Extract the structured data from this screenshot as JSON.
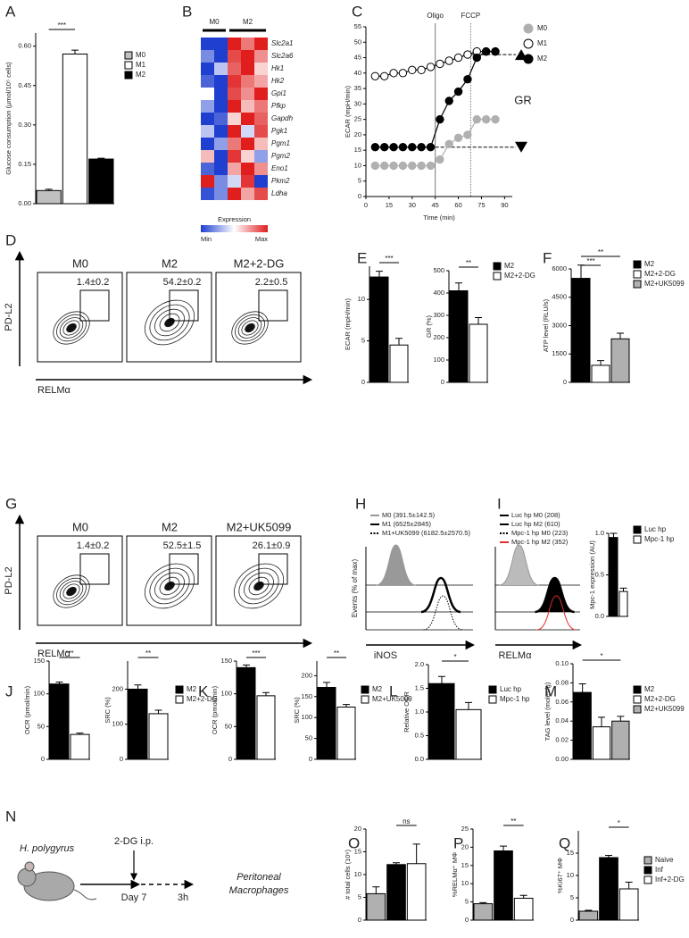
{
  "chart_data": [
    {
      "panel": "A",
      "type": "bar",
      "ylabel": "Glucose consumption (µmol/10⁵ cells)",
      "categories": [
        "M0",
        "M1",
        "M2"
      ],
      "colors": [
        "#c0c0c0",
        "#ffffff",
        "#000000"
      ],
      "values": [
        0.05,
        0.57,
        0.17
      ],
      "errors": [
        0.005,
        0.015,
        0.003
      ],
      "ylim": [
        0,
        0.65
      ],
      "yticks": [
        {
          "value": 0,
          "label": "0.00"
        },
        {
          "value": 0.15,
          "label": "0.15"
        },
        {
          "value": 0.3,
          "label": "0.30"
        },
        {
          "value": 0.45,
          "label": "0.45"
        },
        {
          "value": 0.6,
          "label": "0.60"
        }
      ],
      "annotations": [
        "***"
      ]
    },
    {
      "panel": "B",
      "type": "heatmap",
      "column_groups": [
        "M0",
        "M2"
      ],
      "rows": [
        "Slc2a1",
        "Slc2a6",
        "Hk1",
        "Hk2",
        "Gpi1",
        "Pfkp",
        "Gapdh",
        "Pgk1",
        "Pgm1",
        "Pgm2",
        "Eno1",
        "Pkm2",
        "Ldha"
      ],
      "matrix": [
        [
          -1,
          -1,
          1,
          0.6,
          1
        ],
        [
          -0.6,
          -1,
          0.8,
          1,
          0.5
        ],
        [
          -1,
          -0.3,
          0.7,
          1,
          0.2
        ],
        [
          -0.8,
          -1,
          0.9,
          0.6,
          0.4
        ],
        [
          0,
          -1,
          0.8,
          0.5,
          1
        ],
        [
          -0.5,
          -1,
          1,
          0.3,
          0.6
        ],
        [
          -1,
          -0.8,
          0.2,
          1,
          0.7
        ],
        [
          -0.3,
          -1,
          1,
          -0.2,
          0.8
        ],
        [
          -1,
          -0.5,
          0.6,
          1,
          0.3
        ],
        [
          0.3,
          -1,
          0.9,
          0.2,
          -0.5
        ],
        [
          -0.8,
          -1,
          0.4,
          1,
          0.5
        ],
        [
          1,
          -0.6,
          -0.2,
          0.9,
          -1
        ],
        [
          -0.9,
          -0.6,
          1,
          0.4,
          0.8
        ]
      ],
      "zlim": [
        -1,
        1
      ],
      "colorbar_label": "Expression",
      "min_label": "Min",
      "max_label": "Max"
    },
    {
      "panel": "C",
      "type": "line",
      "ylabel": "ECAR (mpH/min)",
      "xlabel": "Time (min)",
      "x": [
        6,
        12,
        18,
        24,
        30,
        36,
        42,
        48,
        54,
        60,
        66,
        72,
        78,
        84
      ],
      "series": [
        {
          "name": "M0",
          "color": "#b0b0b0",
          "values": [
            10,
            10,
            10,
            10,
            10,
            10,
            10,
            12,
            17,
            19,
            20,
            25,
            25,
            25
          ]
        },
        {
          "name": "M1",
          "color": "#ffffff",
          "values": [
            39,
            39,
            40,
            40,
            41,
            41,
            42,
            43,
            44,
            45,
            46,
            47,
            47,
            47
          ]
        },
        {
          "name": "M2",
          "color": "#000000",
          "values": [
            16,
            16,
            16,
            16,
            16,
            16,
            16,
            25,
            31,
            34,
            38,
            45,
            47,
            47
          ]
        }
      ],
      "xlim": [
        0,
        95
      ],
      "xticks": [
        0,
        15,
        30,
        45,
        60,
        75,
        90
      ],
      "ylim": [
        0,
        55
      ],
      "yticks": [
        0,
        5,
        10,
        15,
        20,
        25,
        30,
        35,
        40,
        45,
        50,
        55
      ],
      "vlines": [
        {
          "value": 45,
          "label": "Oligo"
        },
        {
          "value": 68,
          "label": "FCCP"
        }
      ],
      "hlines": [
        46,
        16
      ],
      "annotation": "GR"
    },
    {
      "panel": "E",
      "type": "bar",
      "ylabel": "ECAR (mpH/min)",
      "colors": [
        "#000000",
        "#ffffff"
      ],
      "values": [
        12.7,
        4.5
      ],
      "errors": [
        0.7,
        0.8
      ],
      "ylim": [
        0,
        14
      ],
      "yticks": [
        0,
        5,
        10
      ],
      "annotations": [
        "***"
      ]
    },
    {
      "type": "bar",
      "ylabel": "GR (%)",
      "categories": [
        "M2",
        "M2+2-DG"
      ],
      "colors": [
        "#000000",
        "#ffffff"
      ],
      "values": [
        410,
        260
      ],
      "errors": [
        35,
        30
      ],
      "ylim": [
        0,
        500
      ],
      "yticks": [
        0,
        100,
        200,
        300,
        400,
        500
      ],
      "annotations": [
        "**"
      ]
    },
    {
      "panel": "F",
      "type": "bar",
      "ylabel": "ATP level (RLU/s)",
      "categories": [
        "M2",
        "M2+2-DG",
        "M2+UK5099"
      ],
      "colors": [
        "#000000",
        "#ffffff",
        "#b0b0b0"
      ],
      "values": [
        5500,
        900,
        2300
      ],
      "errors": [
        700,
        250,
        300
      ],
      "ylim": [
        0,
        6000
      ],
      "yticks": [
        0,
        1500,
        3000,
        4500,
        6000
      ],
      "annotations": [
        "***",
        "**"
      ]
    },
    {
      "type": "bar",
      "ylabel": "Mpc-1 expression (AU)",
      "categories": [
        "Luc hp",
        "Mpc-1 hp"
      ],
      "colors": [
        "#000000",
        "#ffffff"
      ],
      "values": [
        0.95,
        0.3
      ],
      "errors": [
        0.05,
        0.04
      ],
      "ylim": [
        0,
        1
      ],
      "yticks": [
        {
          "value": 0,
          "label": "0.0"
        },
        {
          "value": 0.5,
          "label": "0.5"
        },
        {
          "value": 1,
          "label": "1.0"
        }
      ]
    },
    {
      "panel": "J",
      "type": "bar",
      "ylabel": "OCR (pmol/min)",
      "colors": [
        "#000000",
        "#ffffff"
      ],
      "values": [
        115,
        38
      ],
      "errors": [
        3,
        2
      ],
      "ylim": [
        0,
        150
      ],
      "yticks": [
        0,
        50,
        100,
        150
      ],
      "annotations": [
        "***"
      ]
    },
    {
      "type": "bar",
      "ylabel": "SRC (%)",
      "categories": [
        "M2",
        "M2+2-DG"
      ],
      "colors": [
        "#000000",
        "#ffffff"
      ],
      "values": [
        200,
        130
      ],
      "errors": [
        12,
        10
      ],
      "ylim": [
        0,
        280
      ],
      "yticks": [
        0,
        100,
        200
      ],
      "annotations": [
        "**"
      ]
    },
    {
      "panel": "K",
      "type": "bar",
      "ylabel": "OCR (pmol/min)",
      "colors": [
        "#000000",
        "#ffffff"
      ],
      "values": [
        140,
        97
      ],
      "errors": [
        4,
        5
      ],
      "ylim": [
        0,
        150
      ],
      "yticks": [
        0,
        50,
        100,
        150
      ],
      "annotations": [
        "***"
      ]
    },
    {
      "type": "bar",
      "ylabel": "SRC (%)",
      "categories": [
        "M2",
        "M2+UK5099"
      ],
      "colors": [
        "#000000",
        "#ffffff"
      ],
      "values": [
        172,
        125
      ],
      "errors": [
        12,
        6
      ],
      "ylim": [
        0,
        235
      ],
      "yticks": [
        0,
        50,
        100,
        150,
        200
      ],
      "annotations": [
        "**"
      ]
    },
    {
      "panel": "L",
      "type": "bar",
      "ylabel": "Relative OCR",
      "categories": [
        "Luc hp",
        "Mpc-1 hp"
      ],
      "colors": [
        "#000000",
        "#ffffff"
      ],
      "values": [
        1.6,
        1.05
      ],
      "errors": [
        0.15,
        0.15
      ],
      "ylim": [
        0,
        2
      ],
      "yticks": [
        {
          "value": 0,
          "label": "0.0"
        },
        {
          "value": 0.5,
          "label": "0.5"
        },
        {
          "value": 1,
          "label": "1.0"
        },
        {
          "value": 1.5,
          "label": "1.5"
        },
        {
          "value": 2,
          "label": "2.0"
        }
      ],
      "annotations": [
        "*"
      ]
    },
    {
      "panel": "M",
      "type": "bar",
      "ylabel": "TAG level (moles/g)",
      "categories": [
        "M2",
        "M2+2-DG",
        "M2+UK5099"
      ],
      "colors": [
        "#000000",
        "#ffffff",
        "#b0b0b0"
      ],
      "values": [
        0.07,
        0.034,
        0.04
      ],
      "errors": [
        0.009,
        0.01,
        0.005
      ],
      "ylim": [
        0,
        0.1
      ],
      "yticks": [
        {
          "value": 0,
          "label": "0.00"
        },
        {
          "value": 0.02,
          "label": "0.02"
        },
        {
          "value": 0.04,
          "label": "0.04"
        },
        {
          "value": 0.06,
          "label": "0.06"
        },
        {
          "value": 0.08,
          "label": "0.08"
        },
        {
          "value": 0.1,
          "label": "0.10"
        }
      ],
      "annotations": [
        "*"
      ]
    },
    {
      "panel": "O",
      "type": "bar",
      "ylabel": "# total cells (10⁶)",
      "colors": [
        "#b0b0b0",
        "#000000",
        "#ffffff"
      ],
      "values": [
        5.8,
        12.2,
        12.4
      ],
      "errors": [
        1.5,
        0.4,
        4.3
      ],
      "ylim": [
        0,
        20
      ],
      "yticks": [
        0,
        5,
        10,
        15,
        20
      ],
      "annotations": [
        "ns"
      ]
    },
    {
      "panel": "P",
      "type": "bar",
      "ylabel": "%RELMα⁺ MΦ",
      "colors": [
        "#b0b0b0",
        "#000000",
        "#ffffff"
      ],
      "values": [
        4.5,
        19,
        6
      ],
      "errors": [
        0.3,
        1.3,
        0.8
      ],
      "ylim": [
        0,
        25
      ],
      "yticks": [
        0,
        5,
        10,
        15,
        20,
        25
      ],
      "annotations": [
        "**"
      ]
    },
    {
      "panel": "Q",
      "type": "bar",
      "ylabel": "%Ki67⁺ MΦ",
      "categories": [
        "Naive",
        "Inf",
        "Inf+2-DG"
      ],
      "colors": [
        "#b0b0b0",
        "#000000",
        "#ffffff"
      ],
      "values": [
        2,
        14,
        7
      ],
      "errors": [
        0.2,
        0.5,
        1.5
      ],
      "ylim": [
        0,
        20
      ],
      "yticks": [
        0,
        5,
        10,
        15
      ],
      "annotations": [
        "*"
      ]
    }
  ],
  "flow": [
    {
      "panel": "D",
      "ylabel": "PD-L2",
      "xlabel": "RELMα",
      "plots": [
        {
          "title": "M0",
          "gate": "1.4±0.2"
        },
        {
          "title": "M2",
          "gate": "54.2±0.2"
        },
        {
          "title": "M2+2-DG",
          "gate": "2.2±0.5"
        }
      ]
    },
    {
      "panel": "G",
      "ylabel": "PD-L2",
      "xlabel": "RELMα",
      "plots": [
        {
          "title": "M0",
          "gate": "1.4±0.2"
        },
        {
          "title": "M2",
          "gate": "52.5±1.5"
        },
        {
          "title": "M2+UK5099",
          "gate": "26.1±0.9"
        }
      ]
    }
  ],
  "histograms": [
    {
      "panel": "H",
      "ylabel": "Events (% of max)",
      "xlabel": "iNOS",
      "legend": [
        "M0 (391.5±142.5)",
        "M1 (6525±2845)",
        "M1+UK5099 (6182.5±2570.5)"
      ]
    },
    {
      "panel": "I",
      "xlabel": "RELMα",
      "legend": [
        "Luc hp M0 (208)",
        "Luc hp M2 (610)",
        "Mpc-1 hp M0 (223)",
        "Mpc-1 hp M2 (352)"
      ]
    }
  ],
  "diagram": {
    "panel": "N",
    "organism": "H. polygyrus",
    "treatment": "2-DG i.p.",
    "day": "Day 7",
    "duration": "3h",
    "outcome": [
      "Peritoneal",
      "Macrophages"
    ]
  }
}
